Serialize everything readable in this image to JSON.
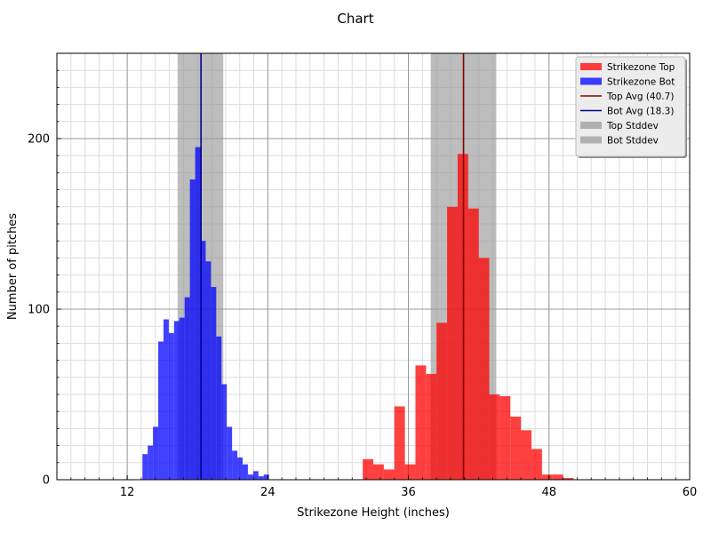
{
  "chart_data": {
    "type": "bar",
    "title": "Chart",
    "xlabel": "Strikezone Height (inches)",
    "ylabel": "Number of pitches",
    "xlim": [
      6,
      60
    ],
    "ylim": [
      0,
      250
    ],
    "x_ticks": [
      12,
      24,
      36,
      48,
      60
    ],
    "y_ticks": [
      0,
      100,
      200
    ],
    "grid": true,
    "legend_position": "top-right",
    "colors": {
      "top_hist": "#ff0000",
      "bot_hist": "#0000ff",
      "top_avg": "#8b0000",
      "bot_avg": "#00008b",
      "stddev": "#999999"
    },
    "series": [
      {
        "name": "Strikezone Top",
        "bin_width": 0.9,
        "bins": [
          {
            "x": 32.1,
            "count": 12
          },
          {
            "x": 33.0,
            "count": 9
          },
          {
            "x": 33.9,
            "count": 6
          },
          {
            "x": 34.8,
            "count": 43
          },
          {
            "x": 35.7,
            "count": 9
          },
          {
            "x": 36.6,
            "count": 67
          },
          {
            "x": 37.5,
            "count": 62
          },
          {
            "x": 38.4,
            "count": 92
          },
          {
            "x": 39.3,
            "count": 160
          },
          {
            "x": 40.2,
            "count": 191
          },
          {
            "x": 41.1,
            "count": 159
          },
          {
            "x": 42.0,
            "count": 130
          },
          {
            "x": 42.9,
            "count": 50
          },
          {
            "x": 43.8,
            "count": 49
          },
          {
            "x": 44.7,
            "count": 37
          },
          {
            "x": 45.6,
            "count": 29
          },
          {
            "x": 46.5,
            "count": 18
          },
          {
            "x": 47.4,
            "count": 3
          },
          {
            "x": 48.3,
            "count": 3
          },
          {
            "x": 49.2,
            "count": 1
          }
        ]
      },
      {
        "name": "Strikezone Bot",
        "bin_width": 0.45,
        "bins": [
          {
            "x": 13.3,
            "count": 15
          },
          {
            "x": 13.75,
            "count": 20
          },
          {
            "x": 14.2,
            "count": 31
          },
          {
            "x": 14.65,
            "count": 81
          },
          {
            "x": 15.1,
            "count": 94
          },
          {
            "x": 15.55,
            "count": 86
          },
          {
            "x": 16.0,
            "count": 93
          },
          {
            "x": 16.45,
            "count": 95
          },
          {
            "x": 16.9,
            "count": 107
          },
          {
            "x": 17.35,
            "count": 176
          },
          {
            "x": 17.8,
            "count": 195
          },
          {
            "x": 18.25,
            "count": 140
          },
          {
            "x": 18.7,
            "count": 128
          },
          {
            "x": 19.15,
            "count": 113
          },
          {
            "x": 19.6,
            "count": 84
          },
          {
            "x": 20.05,
            "count": 56
          },
          {
            "x": 20.5,
            "count": 31
          },
          {
            "x": 20.95,
            "count": 17
          },
          {
            "x": 21.4,
            "count": 13
          },
          {
            "x": 21.85,
            "count": 9
          },
          {
            "x": 22.3,
            "count": 3
          },
          {
            "x": 22.75,
            "count": 5
          },
          {
            "x": 23.2,
            "count": 2
          },
          {
            "x": 23.65,
            "count": 3
          }
        ]
      }
    ],
    "averages": [
      {
        "name": "Top Avg (40.7)",
        "value": 40.7
      },
      {
        "name": "Bot Avg (18.3)",
        "value": 18.3
      }
    ],
    "stddev_bands": [
      {
        "name": "Top Stddev",
        "from": 37.9,
        "to": 43.5
      },
      {
        "name": "Bot Stddev",
        "from": 16.3,
        "to": 20.2
      }
    ],
    "legend": [
      {
        "label": "Strikezone Top",
        "kind": "patch",
        "color": "#ff3b3b"
      },
      {
        "label": "Strikezone Bot",
        "kind": "patch",
        "color": "#3b3bff"
      },
      {
        "label": "Top Avg (40.7)",
        "kind": "line",
        "color": "#8b0000"
      },
      {
        "label": "Bot Avg (18.3)",
        "kind": "line",
        "color": "#00008b"
      },
      {
        "label": "Top Stddev",
        "kind": "patch",
        "color": "#b0b0b0"
      },
      {
        "label": "Bot Stddev",
        "kind": "patch",
        "color": "#b0b0b0"
      }
    ]
  }
}
